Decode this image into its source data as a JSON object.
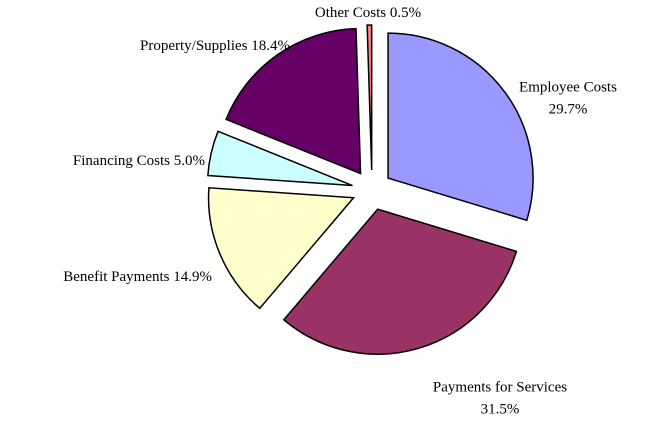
{
  "chart_data": {
    "type": "pie",
    "categories": [
      "Employee Costs",
      "Payments for Services",
      "Benefit Payments",
      "Financing Costs",
      "Property/Supplies",
      "Other Costs"
    ],
    "values": [
      29.7,
      31.5,
      14.9,
      5.0,
      18.4,
      0.5
    ],
    "value_labels": [
      "29.7%",
      "31.5%",
      "14.9%",
      "5.0%",
      "18.4%",
      "0.5%"
    ],
    "colors": [
      "#9999ff",
      "#993366",
      "#ffffcc",
      "#ccffff",
      "#660066",
      "#ff8080"
    ]
  }
}
